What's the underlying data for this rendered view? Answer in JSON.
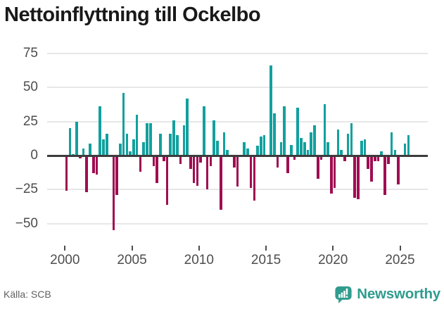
{
  "page": {
    "title": "Nettoinflyttning till Ockelbo",
    "source": "Källa: SCB"
  },
  "brand": {
    "name": "Newsworthy",
    "icon": "newsworthy-speech-bubble-bar-chart-icon",
    "color": "#2f9c8e"
  },
  "colors": {
    "positive_bar": "#12a09e",
    "negative_bar": "#9f0d51",
    "gridline": "#e7e7e7",
    "zero_line": "#3c3c3c",
    "tick_text": "#4d4d4d",
    "title_text": "#191919",
    "source_text": "#606060",
    "background": "#ffffff"
  },
  "chart_data": {
    "type": "bar",
    "title": "Nettoinflyttning till Ockelbo",
    "frequency": "quarterly",
    "start_period": "2000Q1",
    "end_period": "2025Q3",
    "grid": true,
    "legend": "none",
    "y_axis": {
      "ticks": [
        75,
        50,
        25,
        0,
        -25,
        -50
      ],
      "tick_labels": [
        "75",
        "50",
        "25",
        "0",
        "−25",
        "−50"
      ],
      "range": [
        -62,
        80
      ]
    },
    "x_axis": {
      "tick_years": [
        2000,
        2005,
        2010,
        2015,
        2020,
        2025
      ],
      "tick_labels": [
        "2000",
        "2005",
        "2010",
        "2015",
        "2020",
        "2025"
      ]
    },
    "series": [
      {
        "name": "Nettoinflyttning",
        "values": [
          -26,
          20,
          1,
          25,
          -2,
          5,
          -27,
          9,
          -13,
          -14,
          36,
          12,
          16,
          0,
          -55,
          -29,
          9,
          46,
          16,
          3,
          12,
          30,
          -12,
          10,
          24,
          24,
          -8,
          -20,
          16,
          -4,
          -36,
          16,
          26,
          15,
          -6,
          22,
          42,
          -10,
          -20,
          -22,
          -5,
          36,
          -25,
          -8,
          26,
          11,
          -40,
          17,
          4,
          0,
          -9,
          -23,
          0,
          10,
          5,
          -24,
          -33,
          7,
          14,
          15,
          0,
          66,
          31,
          -9,
          10,
          36,
          -13,
          8,
          -3,
          35,
          13,
          10,
          4,
          17,
          22,
          -17,
          -3,
          38,
          10,
          -28,
          -24,
          19,
          4,
          -4,
          16,
          24,
          -31,
          -32,
          11,
          12,
          -10,
          -19,
          -4,
          -4,
          3,
          -29,
          -6,
          17,
          4,
          -21,
          0,
          9,
          15
        ]
      }
    ]
  }
}
